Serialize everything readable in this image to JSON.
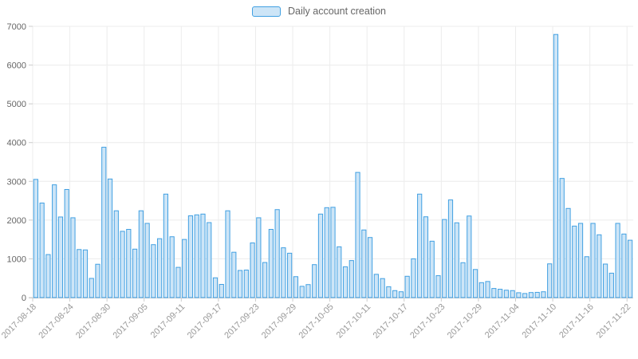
{
  "legend": {
    "label": "Daily account creation"
  },
  "chart_data": {
    "type": "bar",
    "title": "",
    "series_name": "Daily account creation",
    "legend_position": "top-center",
    "grid": true,
    "ylim": [
      0,
      7000
    ],
    "yticks": [
      0,
      1000,
      2000,
      3000,
      4000,
      5000,
      6000,
      7000
    ],
    "xtick_every": 6,
    "xtick_labels": [
      "2017-08-18",
      "2017-08-24",
      "2017-08-30",
      "2017-09-05",
      "2017-09-11",
      "2017-09-17",
      "2017-09-23",
      "2017-09-29",
      "2017-10-05",
      "2017-10-11",
      "2017-10-17",
      "2017-10-23",
      "2017-10-29",
      "2017-11-04",
      "2017-11-10",
      "2017-11-16",
      "2017-11-22"
    ],
    "x": [
      "2017-08-18",
      "2017-08-19",
      "2017-08-20",
      "2017-08-21",
      "2017-08-22",
      "2017-08-23",
      "2017-08-24",
      "2017-08-25",
      "2017-08-26",
      "2017-08-27",
      "2017-08-28",
      "2017-08-29",
      "2017-08-30",
      "2017-08-31",
      "2017-09-01",
      "2017-09-02",
      "2017-09-03",
      "2017-09-04",
      "2017-09-05",
      "2017-09-06",
      "2017-09-07",
      "2017-09-08",
      "2017-09-09",
      "2017-09-10",
      "2017-09-11",
      "2017-09-12",
      "2017-09-13",
      "2017-09-14",
      "2017-09-15",
      "2017-09-16",
      "2017-09-17",
      "2017-09-18",
      "2017-09-19",
      "2017-09-20",
      "2017-09-21",
      "2017-09-22",
      "2017-09-23",
      "2017-09-24",
      "2017-09-25",
      "2017-09-26",
      "2017-09-27",
      "2017-09-28",
      "2017-09-29",
      "2017-09-30",
      "2017-10-01",
      "2017-10-02",
      "2017-10-03",
      "2017-10-04",
      "2017-10-05",
      "2017-10-06",
      "2017-10-07",
      "2017-10-08",
      "2017-10-09",
      "2017-10-10",
      "2017-10-11",
      "2017-10-12",
      "2017-10-13",
      "2017-10-14",
      "2017-10-15",
      "2017-10-16",
      "2017-10-17",
      "2017-10-18",
      "2017-10-19",
      "2017-10-20",
      "2017-10-21",
      "2017-10-22",
      "2017-10-23",
      "2017-10-24",
      "2017-10-25",
      "2017-10-26",
      "2017-10-27",
      "2017-10-28",
      "2017-10-29",
      "2017-10-30",
      "2017-10-31",
      "2017-11-01",
      "2017-11-02",
      "2017-11-03",
      "2017-11-04",
      "2017-11-05",
      "2017-11-06",
      "2017-11-07",
      "2017-11-08",
      "2017-11-09",
      "2017-11-10",
      "2017-11-11",
      "2017-11-12",
      "2017-11-13",
      "2017-11-14",
      "2017-11-15",
      "2017-11-16",
      "2017-11-17",
      "2017-11-18",
      "2017-11-19",
      "2017-11-20",
      "2017-11-21",
      "2017-11-22"
    ],
    "values": [
      3050,
      2440,
      1110,
      2910,
      2080,
      2790,
      2060,
      1240,
      1230,
      495,
      860,
      3880,
      3060,
      2240,
      1710,
      1760,
      1250,
      2240,
      1915,
      1365,
      1520,
      2670,
      1570,
      780,
      1500,
      2110,
      2135,
      2155,
      1935,
      510,
      340,
      2240,
      1170,
      700,
      710,
      1410,
      2060,
      905,
      1760,
      2270,
      1285,
      1145,
      540,
      290,
      335,
      850,
      2155,
      2320,
      2330,
      1310,
      795,
      955,
      3230,
      1745,
      1550,
      600,
      490,
      280,
      180,
      150,
      550,
      1000,
      2670,
      2085,
      1455,
      565,
      2015,
      2520,
      1930,
      900,
      2105,
      725,
      385,
      415,
      235,
      215,
      190,
      180,
      125,
      105,
      130,
      135,
      150,
      870,
      6790,
      3075,
      2300,
      1845,
      1915,
      1055,
      1915,
      1620,
      865,
      630,
      1915,
      1640,
      1480
    ],
    "colors": {
      "bar_fill": "#CDE5F7",
      "bar_border": "#41A0E2",
      "gridline": "#ECECEC",
      "axis_line": "#CCCCCC",
      "y_label": "#666666",
      "x_label": "#999999",
      "legend_text": "#666666",
      "background": "#FFFFFF"
    }
  }
}
